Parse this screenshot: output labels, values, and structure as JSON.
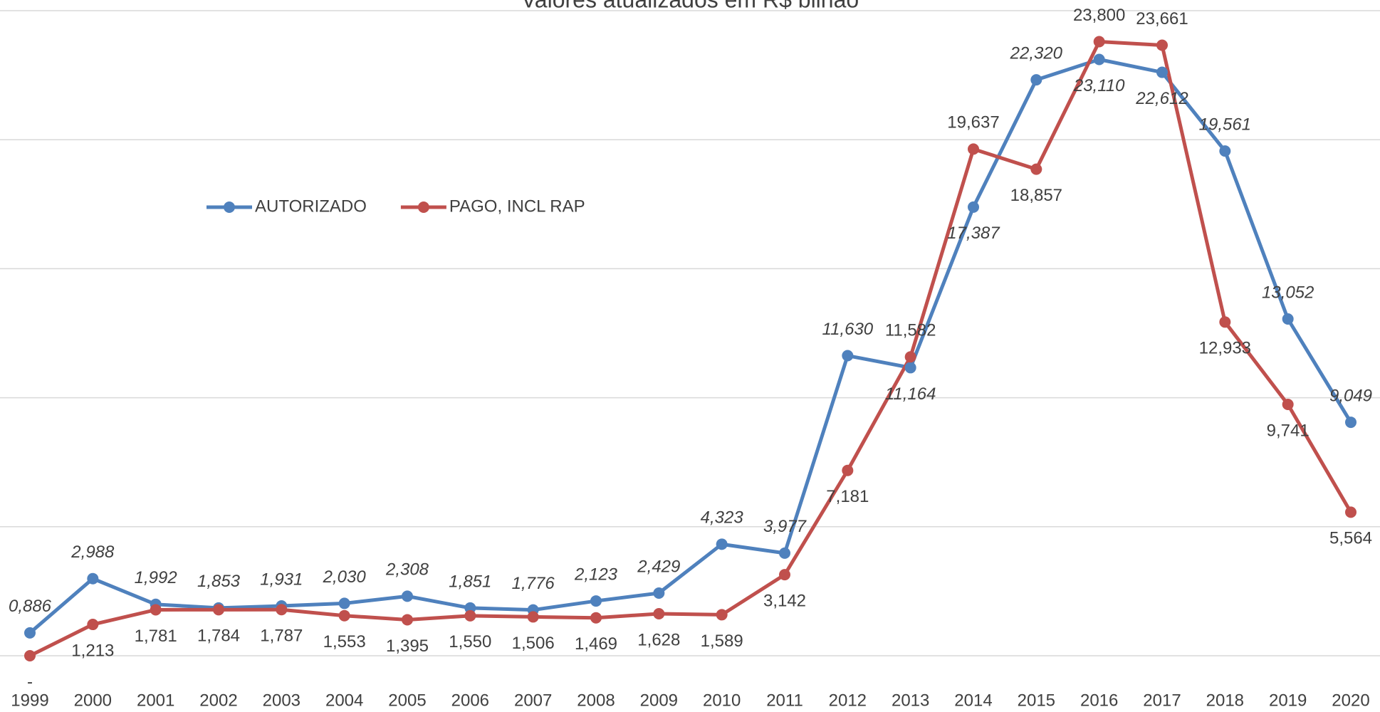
{
  "chart_data": {
    "type": "line",
    "title": "Valores atualizados em R$ bilhão",
    "categories": [
      "1999",
      "2000",
      "2001",
      "2002",
      "2003",
      "2004",
      "2005",
      "2006",
      "2007",
      "2008",
      "2009",
      "2010",
      "2011",
      "2012",
      "2013",
      "2014",
      "2015",
      "2016",
      "2017",
      "2018",
      "2019",
      "2020"
    ],
    "series": [
      {
        "name": "AUTORIZADO",
        "color": "#4f81bd",
        "italic_labels": true,
        "values": [
          0.886,
          2.988,
          1.992,
          1.853,
          1.931,
          2.03,
          2.308,
          1.851,
          1.776,
          2.123,
          2.429,
          4.323,
          3.977,
          11.63,
          11.164,
          17.387,
          22.32,
          23.11,
          22.612,
          19.561,
          13.052,
          9.049
        ],
        "value_labels": [
          "0,886",
          "2,988",
          "1,992",
          "1,853",
          "1,931",
          "2,030",
          "2,308",
          "1,851",
          "1,776",
          "2,123",
          "2,429",
          "4,323",
          "3,977",
          "11,630",
          "11,164",
          "17,387",
          "22,320",
          "23,110",
          "22,612",
          "19,561",
          "13,052",
          "9,049"
        ]
      },
      {
        "name": "PAGO, INCL RAP",
        "color": "#c0504d",
        "italic_labels": false,
        "values": [
          0,
          1.213,
          1.781,
          1.784,
          1.787,
          1.553,
          1.395,
          1.55,
          1.506,
          1.469,
          1.628,
          1.589,
          3.142,
          7.181,
          11.582,
          19.637,
          18.857,
          23.8,
          23.661,
          12.933,
          9.741,
          5.564
        ],
        "value_labels": [
          "-",
          "1,213",
          "1,781",
          "1,784",
          "1,787",
          "1,553",
          "1,395",
          "1,550",
          "1,506",
          "1,469",
          "1,628",
          "1,589",
          "3,142",
          "7,181",
          "11,582",
          "19,637",
          "18,857",
          "23,800",
          "23,661",
          "12,933",
          "9,741",
          "5,564"
        ]
      }
    ],
    "ylim": [
      0,
      25
    ],
    "yticks": [
      0,
      5,
      10,
      15,
      20,
      25
    ],
    "grid": true
  }
}
